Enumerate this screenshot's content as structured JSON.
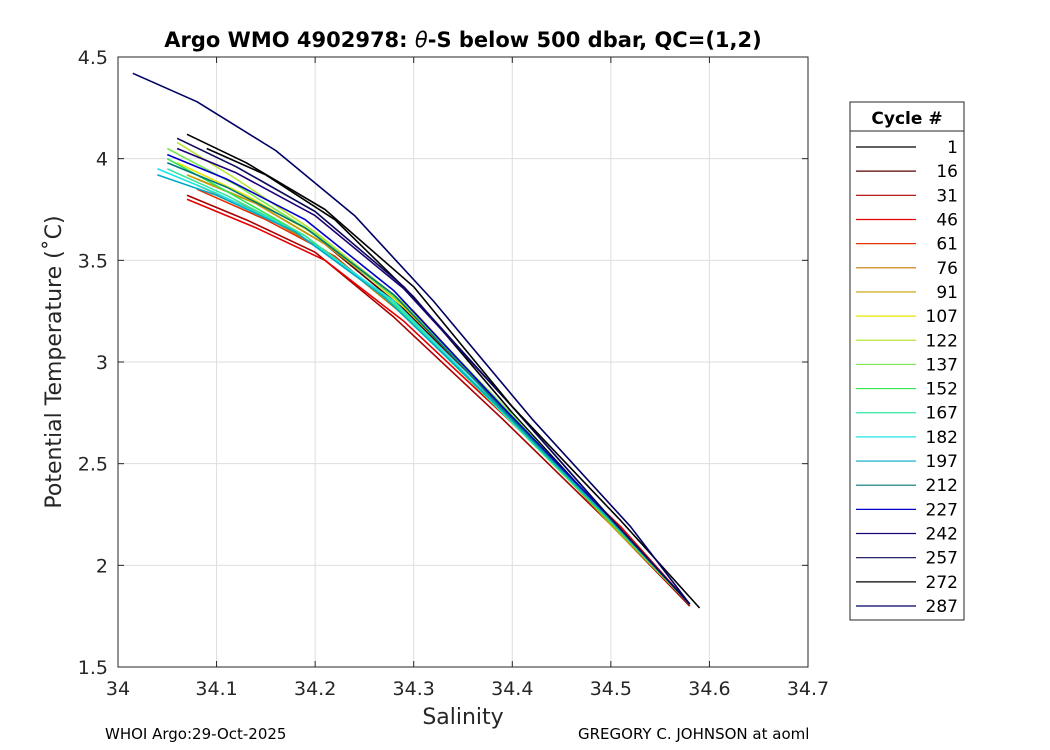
{
  "chart_data": {
    "type": "line",
    "title_prefix": "Argo WMO 4902978: ",
    "title_theta": "θ",
    "title_suffix": "-S below 500 dbar,  QC=(1,2)",
    "xlabel": "Salinity",
    "ylabel": "Potential Temperature (˚C)",
    "xlim": [
      34.0,
      34.7
    ],
    "ylim": [
      1.5,
      4.5
    ],
    "xticks": [
      34.0,
      34.1,
      34.2,
      34.3,
      34.4,
      34.5,
      34.6,
      34.7
    ],
    "xtick_labels": [
      "34",
      "34.1",
      "34.2",
      "34.3",
      "34.4",
      "34.5",
      "34.6",
      "34.7"
    ],
    "yticks": [
      1.5,
      2.0,
      2.5,
      3.0,
      3.5,
      4.0,
      4.5
    ],
    "ytick_labels": [
      "1.5",
      "2",
      "2.5",
      "3",
      "3.5",
      "4",
      "4.5"
    ],
    "grid": true,
    "legend": {
      "title": "Cycle #",
      "position": "right-outside",
      "entries": [
        {
          "label": "1",
          "color": "#000000"
        },
        {
          "label": "16",
          "color": "#5a0000"
        },
        {
          "label": "31",
          "color": "#aa0000"
        },
        {
          "label": "46",
          "color": "#e60000"
        },
        {
          "label": "61",
          "color": "#e63200"
        },
        {
          "label": "76",
          "color": "#c87800"
        },
        {
          "label": "91",
          "color": "#c8a000"
        },
        {
          "label": "107",
          "color": "#e6e600"
        },
        {
          "label": "122",
          "color": "#b4e632"
        },
        {
          "label": "137",
          "color": "#78e650"
        },
        {
          "label": "152",
          "color": "#32e650"
        },
        {
          "label": "167",
          "color": "#32e6a0"
        },
        {
          "label": "182",
          "color": "#1ee6e6"
        },
        {
          "label": "197",
          "color": "#00aac8"
        },
        {
          "label": "212",
          "color": "#007878"
        },
        {
          "label": "227",
          "color": "#0000c8"
        },
        {
          "label": "242",
          "color": "#1e0078"
        },
        {
          "label": "257",
          "color": "#0a0a5a"
        },
        {
          "label": "272",
          "color": "#000000"
        },
        {
          "label": "287",
          "color": "#000064"
        }
      ]
    },
    "series": [
      {
        "name": "1",
        "color": "#000000",
        "salinity": [
          34.09,
          34.15,
          34.22,
          34.3,
          34.4,
          34.5,
          34.58
        ],
        "theta": [
          4.05,
          3.92,
          3.7,
          3.32,
          2.75,
          2.22,
          1.8
        ]
      },
      {
        "name": "16",
        "color": "#5a0000",
        "salinity": [
          34.08,
          34.14,
          34.21,
          34.29,
          34.4,
          34.5,
          34.58
        ],
        "theta": [
          3.9,
          3.78,
          3.58,
          3.26,
          2.73,
          2.21,
          1.8
        ]
      },
      {
        "name": "31",
        "color": "#aa0000",
        "salinity": [
          34.07,
          34.13,
          34.2,
          34.28,
          34.39,
          34.5,
          34.58
        ],
        "theta": [
          3.82,
          3.7,
          3.54,
          3.22,
          2.72,
          2.2,
          1.8
        ]
      },
      {
        "name": "46",
        "color": "#e60000",
        "salinity": [
          34.07,
          34.14,
          34.21,
          34.29,
          34.4,
          34.51,
          34.58
        ],
        "theta": [
          3.8,
          3.66,
          3.5,
          3.2,
          2.7,
          2.19,
          1.81
        ]
      },
      {
        "name": "61",
        "color": "#e63200",
        "salinity": [
          34.08,
          34.15,
          34.22,
          34.3,
          34.4,
          34.51,
          34.58
        ],
        "theta": [
          3.85,
          3.7,
          3.52,
          3.19,
          2.7,
          2.18,
          1.81
        ]
      },
      {
        "name": "76",
        "color": "#c87800",
        "salinity": [
          34.08,
          34.14,
          34.21,
          34.29,
          34.4,
          34.5,
          34.58
        ],
        "theta": [
          3.87,
          3.74,
          3.55,
          3.23,
          2.72,
          2.2,
          1.81
        ]
      },
      {
        "name": "91",
        "color": "#c8a000",
        "salinity": [
          34.07,
          34.14,
          34.21,
          34.3,
          34.4,
          34.5,
          34.58
        ],
        "theta": [
          3.92,
          3.78,
          3.58,
          3.25,
          2.73,
          2.2,
          1.81
        ]
      },
      {
        "name": "107",
        "color": "#e6e600",
        "salinity": [
          34.06,
          34.13,
          34.21,
          34.29,
          34.4,
          34.5,
          34.58
        ],
        "theta": [
          3.98,
          3.82,
          3.6,
          3.27,
          2.74,
          2.21,
          1.81
        ]
      },
      {
        "name": "122",
        "color": "#b4e632",
        "salinity": [
          34.06,
          34.12,
          34.2,
          34.29,
          34.4,
          34.5,
          34.58
        ],
        "theta": [
          4.08,
          3.9,
          3.64,
          3.29,
          2.74,
          2.21,
          1.81
        ]
      },
      {
        "name": "137",
        "color": "#78e650",
        "salinity": [
          34.05,
          34.12,
          34.2,
          34.29,
          34.4,
          34.5,
          34.58
        ],
        "theta": [
          4.05,
          3.87,
          3.63,
          3.28,
          2.74,
          2.21,
          1.81
        ]
      },
      {
        "name": "152",
        "color": "#32e650",
        "salinity": [
          34.05,
          34.11,
          34.19,
          34.28,
          34.39,
          34.5,
          34.58
        ],
        "theta": [
          4.0,
          3.84,
          3.62,
          3.28,
          2.75,
          2.21,
          1.81
        ]
      },
      {
        "name": "167",
        "color": "#32e6a0",
        "salinity": [
          34.05,
          34.11,
          34.19,
          34.28,
          34.39,
          34.5,
          34.58
        ],
        "theta": [
          3.95,
          3.82,
          3.62,
          3.29,
          2.75,
          2.22,
          1.81
        ]
      },
      {
        "name": "182",
        "color": "#1ee6e6",
        "salinity": [
          34.04,
          34.1,
          34.18,
          34.28,
          34.39,
          34.5,
          34.58
        ],
        "theta": [
          3.95,
          3.83,
          3.64,
          3.3,
          2.76,
          2.22,
          1.81
        ]
      },
      {
        "name": "197",
        "color": "#00aac8",
        "salinity": [
          34.04,
          34.1,
          34.18,
          34.27,
          34.39,
          34.5,
          34.58
        ],
        "theta": [
          3.92,
          3.82,
          3.64,
          3.32,
          2.76,
          2.22,
          1.81
        ]
      },
      {
        "name": "212",
        "color": "#007878",
        "salinity": [
          34.05,
          34.11,
          34.19,
          34.28,
          34.39,
          34.5,
          34.58
        ],
        "theta": [
          3.98,
          3.86,
          3.66,
          3.33,
          2.77,
          2.23,
          1.81
        ]
      },
      {
        "name": "227",
        "color": "#0000c8",
        "salinity": [
          34.05,
          34.11,
          34.19,
          34.28,
          34.39,
          34.5,
          34.58
        ],
        "theta": [
          4.02,
          3.9,
          3.7,
          3.35,
          2.78,
          2.23,
          1.81
        ]
      },
      {
        "name": "242",
        "color": "#1e0078",
        "salinity": [
          34.06,
          34.12,
          34.2,
          34.29,
          34.4,
          34.5,
          34.58
        ],
        "theta": [
          4.05,
          3.93,
          3.72,
          3.36,
          2.78,
          2.23,
          1.81
        ]
      },
      {
        "name": "257",
        "color": "#0a0a5a",
        "salinity": [
          34.06,
          34.12,
          34.2,
          34.29,
          34.4,
          34.5,
          34.58
        ],
        "theta": [
          4.1,
          3.96,
          3.74,
          3.37,
          2.78,
          2.23,
          1.81
        ]
      },
      {
        "name": "272",
        "color": "#000000",
        "salinity": [
          34.07,
          34.13,
          34.21,
          34.3,
          34.4,
          34.51,
          34.59
        ],
        "theta": [
          4.12,
          3.98,
          3.75,
          3.37,
          2.78,
          2.22,
          1.79
        ]
      },
      {
        "name": "287",
        "color": "#000064",
        "salinity": [
          34.015,
          34.08,
          34.16,
          34.24,
          34.32,
          34.42,
          34.52,
          34.58
        ],
        "theta": [
          4.42,
          4.28,
          4.04,
          3.72,
          3.3,
          2.72,
          2.19,
          1.81
        ]
      }
    ]
  },
  "footer": {
    "left": "WHOI Argo:29-Oct-2025",
    "right": "GREGORY C. JOHNSON at aoml"
  }
}
